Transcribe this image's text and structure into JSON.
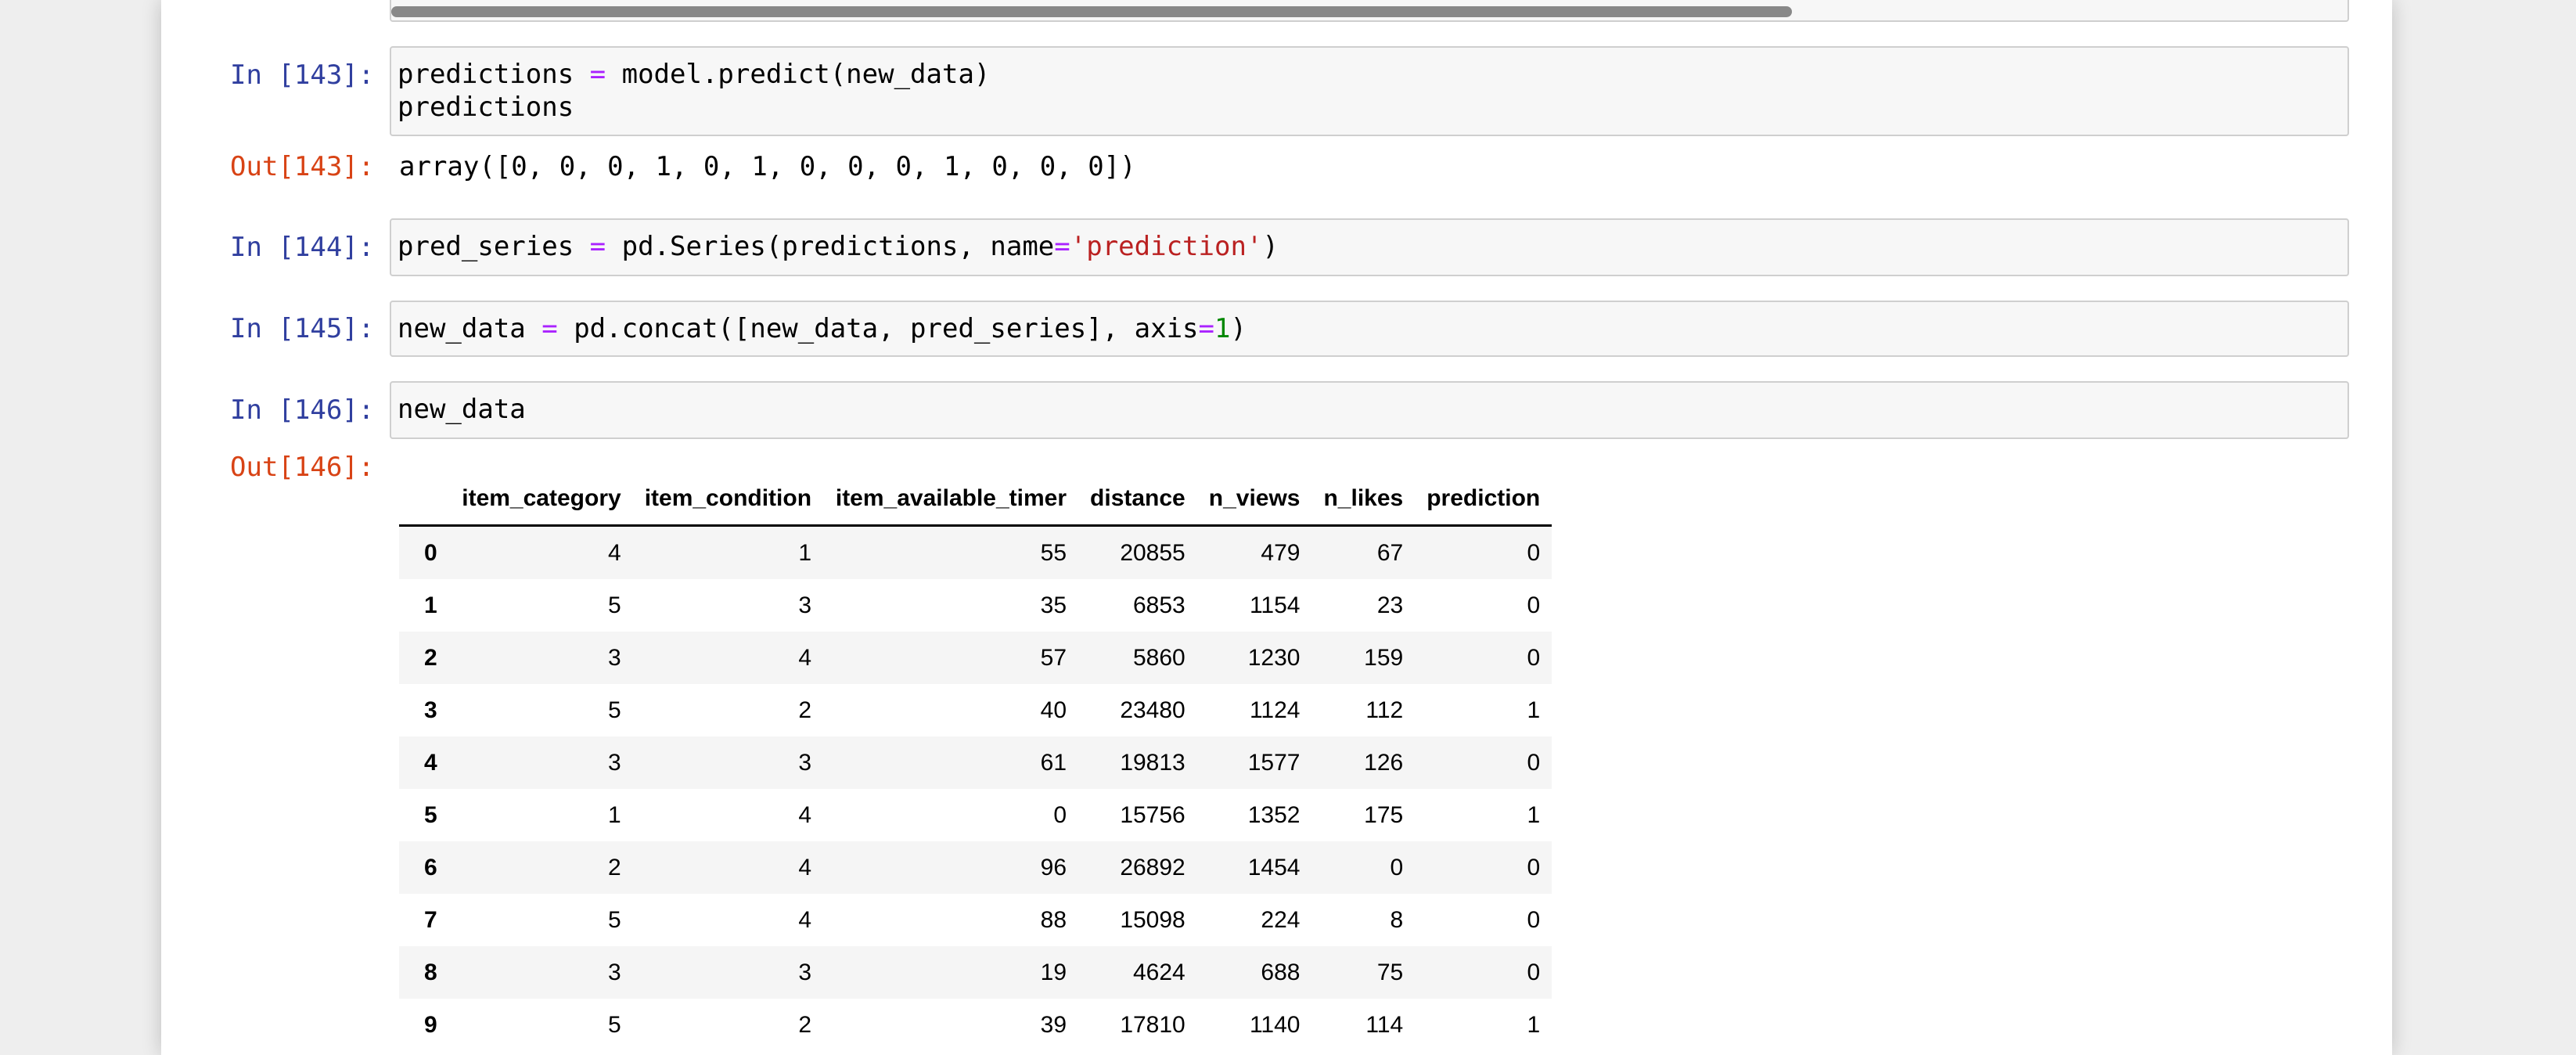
{
  "cells": [
    {
      "prompt": "In [143]:",
      "code": [
        [
          "predictions ",
          {
            "text": "=",
            "color": "#aa22ff"
          },
          " model.predict(new_data)"
        ],
        [
          "predictions"
        ]
      ],
      "out_prompt": "Out[143]:",
      "output": "array([0, 0, 0, 1, 0, 1, 0, 0, 0, 1, 0, 0, 0])"
    },
    {
      "prompt": "In [144]:",
      "code": [
        [
          "pred_series ",
          {
            "text": "=",
            "color": "#aa22ff"
          },
          " pd.Series(predictions, name",
          {
            "text": "=",
            "color": "#aa22ff"
          },
          {
            "text": "'prediction'",
            "color": "#ba2121"
          },
          ")"
        ]
      ]
    },
    {
      "prompt": "In [145]:",
      "code": [
        [
          "new_data ",
          {
            "text": "=",
            "color": "#aa22ff"
          },
          " pd.concat([new_data, pred_series], axis",
          {
            "text": "=",
            "color": "#aa22ff"
          },
          {
            "text": "1",
            "color": "#008800"
          },
          ")"
        ]
      ]
    },
    {
      "prompt": "In [146]:",
      "code": [
        [
          "new_data"
        ]
      ],
      "out_prompt": "Out[146]:"
    }
  ],
  "table": {
    "columns": [
      "item_category",
      "item_condition",
      "item_available_timer",
      "distance",
      "n_views",
      "n_likes",
      "prediction"
    ],
    "rows": [
      [
        0,
        4,
        1,
        55,
        20855,
        479,
        67,
        0
      ],
      [
        1,
        5,
        3,
        35,
        6853,
        1154,
        23,
        0
      ],
      [
        2,
        3,
        4,
        57,
        5860,
        1230,
        159,
        0
      ],
      [
        3,
        5,
        2,
        40,
        23480,
        1124,
        112,
        1
      ],
      [
        4,
        3,
        3,
        61,
        19813,
        1577,
        126,
        0
      ],
      [
        5,
        1,
        4,
        0,
        15756,
        1352,
        175,
        1
      ],
      [
        6,
        2,
        4,
        96,
        26892,
        1454,
        0,
        0
      ],
      [
        7,
        5,
        4,
        88,
        15098,
        224,
        8,
        0
      ],
      [
        8,
        3,
        3,
        19,
        4624,
        688,
        75,
        0
      ],
      [
        9,
        5,
        2,
        39,
        17810,
        1140,
        114,
        1
      ]
    ]
  }
}
